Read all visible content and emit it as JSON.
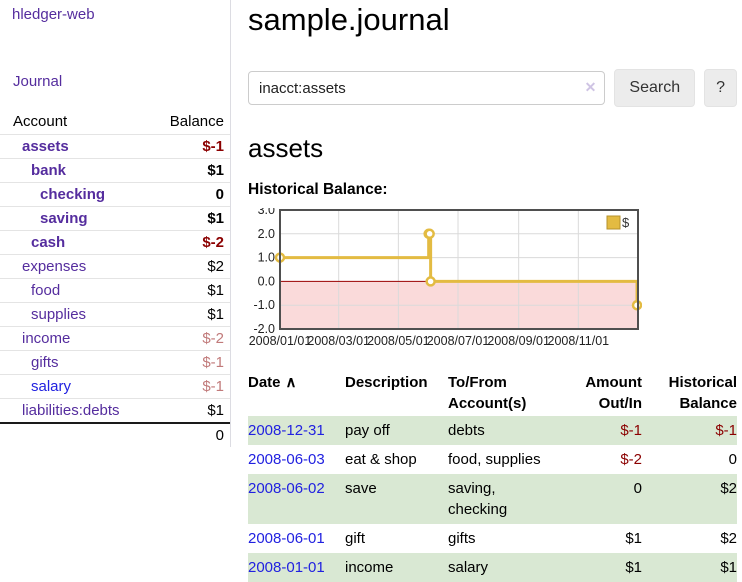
{
  "sidebar": {
    "app_title": "hledger-web",
    "journal_link": "Journal",
    "accounts": {
      "header_account": "Account",
      "header_balance": "Balance",
      "rows": [
        {
          "label": "assets",
          "depth": 1,
          "bold": true,
          "balance": "$-1",
          "balance_tone": "neg-strong",
          "link_tone": "purple"
        },
        {
          "label": "bank",
          "depth": 2,
          "bold": true,
          "balance": "$1",
          "balance_tone": "pos",
          "link_tone": "purple"
        },
        {
          "label": "checking",
          "depth": 3,
          "bold": true,
          "balance": "0",
          "balance_tone": "pos",
          "link_tone": "purple"
        },
        {
          "label": "saving",
          "depth": 3,
          "bold": true,
          "balance": "$1",
          "balance_tone": "pos",
          "link_tone": "purple"
        },
        {
          "label": "cash",
          "depth": 2,
          "bold": true,
          "balance": "$-2",
          "balance_tone": "neg-strong",
          "link_tone": "purple"
        },
        {
          "label": "expenses",
          "depth": 1,
          "bold": false,
          "balance": "$2",
          "balance_tone": "pos",
          "link_tone": "purple"
        },
        {
          "label": "food",
          "depth": 2,
          "bold": false,
          "balance": "$1",
          "balance_tone": "pos",
          "link_tone": "purple"
        },
        {
          "label": "supplies",
          "depth": 2,
          "bold": false,
          "balance": "$1",
          "balance_tone": "pos",
          "link_tone": "purple"
        },
        {
          "label": "income",
          "depth": 1,
          "bold": false,
          "balance": "$-2",
          "balance_tone": "neg-soft",
          "link_tone": "purple"
        },
        {
          "label": "gifts",
          "depth": 2,
          "bold": false,
          "balance": "$-1",
          "balance_tone": "neg-soft",
          "link_tone": "purple"
        },
        {
          "label": "salary",
          "depth": 2,
          "bold": false,
          "balance": "$-1",
          "balance_tone": "neg-soft",
          "link_tone": "blue"
        },
        {
          "label": "liabilities:debts",
          "depth": 1,
          "bold": false,
          "balance": "$1",
          "balance_tone": "pos",
          "link_tone": "purple"
        }
      ],
      "total": "0"
    }
  },
  "main": {
    "title": "sample.journal",
    "search": {
      "value": "inacct:assets",
      "clear_icon": "✕",
      "button_label": "Search",
      "help_button_label": "?"
    },
    "account_heading": "assets",
    "chart_label": "Historical Balance:"
  },
  "chart_data": {
    "type": "line",
    "step": true,
    "title": "Historical Balance:",
    "series": [
      {
        "name": "$",
        "x": [
          "2008-01-01",
          "2008-06-01",
          "2008-06-02",
          "2008-06-03",
          "2008-12-31"
        ],
        "values": [
          1,
          2,
          2,
          0,
          -1
        ]
      }
    ],
    "x_start": "2008-01-01",
    "x_end": "2009-01-01",
    "xticks": [
      {
        "label": "2008/01/01",
        "date": "2008-01-01"
      },
      {
        "label": "2008/03/01",
        "date": "2008-03-01"
      },
      {
        "label": "2008/05/01",
        "date": "2008-05-01"
      },
      {
        "label": "2008/07/01",
        "date": "2008-07-01"
      },
      {
        "label": "2008/09/01",
        "date": "2008-09-01"
      },
      {
        "label": "2008/11/01",
        "date": "2008-11-01"
      }
    ],
    "ylim": [
      -2,
      3
    ],
    "yticks": [
      3,
      2,
      1,
      0,
      -1,
      -2
    ],
    "legend": [
      {
        "label": "$"
      }
    ],
    "legend_position": "top-right",
    "grid": true,
    "negative_region_shaded": true
  },
  "register": {
    "headers": {
      "date": "Date",
      "sort_indicator": "∧",
      "description": "Description",
      "accounts": "To/From Account(s)",
      "amount": "Amount Out/In",
      "balance": "Historical Balance"
    },
    "rows": [
      {
        "date": "2008-12-31",
        "description": "pay off",
        "accounts": "debts",
        "amount": "$-1",
        "amount_tone": "neg-strong",
        "balance": "$-1",
        "balance_tone": "neg-strong",
        "shaded": true
      },
      {
        "date": "2008-06-03",
        "description": "eat & shop",
        "accounts": "food, supplies",
        "amount": "$-2",
        "amount_tone": "neg-strong",
        "balance": "0",
        "balance_tone": "pos",
        "shaded": false
      },
      {
        "date": "2008-06-02",
        "description": "save",
        "accounts": "saving, checking",
        "amount": "0",
        "amount_tone": "pos",
        "balance": "$2",
        "balance_tone": "pos",
        "shaded": true
      },
      {
        "date": "2008-06-01",
        "description": "gift",
        "accounts": "gifts",
        "amount": "$1",
        "amount_tone": "pos",
        "balance": "$2",
        "balance_tone": "pos",
        "shaded": false
      },
      {
        "date": "2008-01-01",
        "description": "income",
        "accounts": "salary",
        "amount": "$1",
        "amount_tone": "pos",
        "balance": "$1",
        "balance_tone": "pos",
        "shaded": true
      }
    ]
  },
  "colors": {
    "accent_purple": "#552d9e",
    "link_blue": "#2121e0",
    "negative_strong": "#8b0000",
    "negative_soft": "#c17a7a",
    "row_green": "#d9e8d3",
    "chart_gold": "#e3bb42",
    "chart_gold_border": "#b6912c",
    "chart_negative_fill": "#fadada",
    "chart_zero_line": "#990000",
    "chart_grid": "#dadada",
    "chart_border": "#4f4f4f"
  }
}
